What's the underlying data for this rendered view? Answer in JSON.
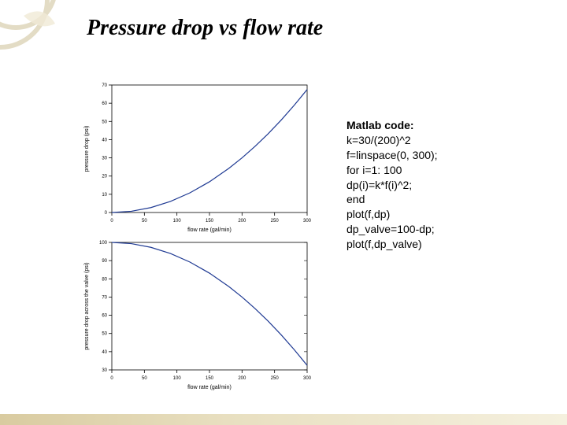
{
  "title": {
    "text": "Pressure drop vs flow rate",
    "fontsize": 28,
    "color": "#000000"
  },
  "decoration": {
    "ring_stroke": "#e3dcc5",
    "ring_width": 6,
    "leaf_fill": "#f0ead6"
  },
  "code": {
    "heading": "Matlab code:",
    "lines": [
      "k=30/(200)^2",
      " f=linspace(0, 300);",
      " for i=1: 100",
      "dp(i)=k*f(i)^2;",
      "end",
      "plot(f,dp)",
      "dp_valve=100-dp;",
      "plot(f,dp_valve)"
    ],
    "fontsize": 14
  },
  "chart_top": {
    "type": "line",
    "xlim": [
      0,
      300
    ],
    "ylim": [
      0,
      70
    ],
    "xticks": [
      0,
      50,
      100,
      150,
      200,
      250,
      300
    ],
    "yticks": [
      0,
      10,
      20,
      30,
      40,
      50,
      60,
      70
    ],
    "xlabel": "flow rate (gal/min)",
    "ylabel": "pressure drop (psi)",
    "label_fontsize": 7,
    "tick_fontsize": 6,
    "line_color": "#1f3a93",
    "line_width": 1.2,
    "box_color": "#000000",
    "grid": false,
    "background_color": "#ffffff",
    "data": {
      "x": [
        0,
        30,
        60,
        90,
        120,
        150,
        180,
        200,
        220,
        240,
        260,
        280,
        300
      ],
      "y": [
        0,
        0.675,
        2.7,
        6.075,
        10.8,
        16.875,
        24.3,
        30,
        36.3,
        43.2,
        50.7,
        58.8,
        67.5
      ]
    }
  },
  "chart_bottom": {
    "type": "line",
    "xlim": [
      0,
      300
    ],
    "ylim": [
      30,
      100
    ],
    "xticks": [
      0,
      50,
      100,
      150,
      200,
      250,
      300
    ],
    "yticks": [
      30,
      40,
      50,
      60,
      70,
      80,
      90,
      100
    ],
    "xlabel": "flow rate (gal/min)",
    "ylabel": "pressure drop across the valve (psi)",
    "label_fontsize": 7,
    "tick_fontsize": 6,
    "line_color": "#1f3a93",
    "line_width": 1.2,
    "box_color": "#000000",
    "minor_ticks": true,
    "grid": false,
    "background_color": "#ffffff",
    "data": {
      "x": [
        0,
        30,
        60,
        90,
        120,
        150,
        180,
        200,
        220,
        240,
        260,
        280,
        300
      ],
      "y": [
        100,
        99.325,
        97.3,
        93.925,
        89.2,
        83.125,
        75.7,
        70,
        63.7,
        56.8,
        49.3,
        41.2,
        32.5
      ]
    }
  }
}
